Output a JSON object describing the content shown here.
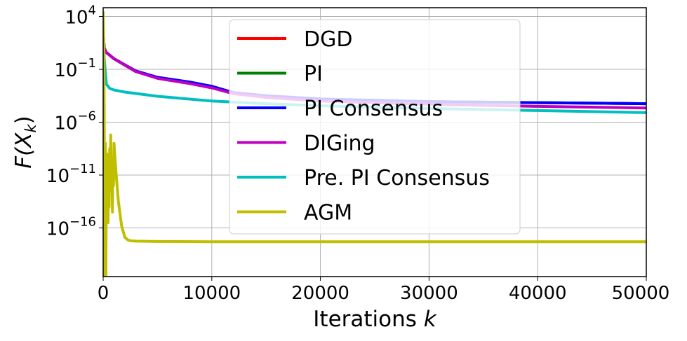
{
  "chart_data": {
    "type": "line",
    "title": "",
    "xlabel": "Iterations k",
    "xlabel_parts": {
      "text": "Iterations ",
      "var": "k"
    },
    "ylabel": "F(X_k)",
    "ylabel_parts": {
      "F": "F(",
      "X": "X",
      "k": "k",
      "close": ")"
    },
    "yscale": "log",
    "xlim": [
      0,
      50000
    ],
    "ylim_log10": [
      -20.6,
      4.83
    ],
    "grid": true,
    "legend_placement": "upper-center",
    "xticks": [
      {
        "value": 0,
        "label": "0"
      },
      {
        "value": 10000,
        "label": "10000"
      },
      {
        "value": 20000,
        "label": "20000"
      },
      {
        "value": 30000,
        "label": "30000"
      },
      {
        "value": 40000,
        "label": "40000"
      },
      {
        "value": 50000,
        "label": "50000"
      }
    ],
    "yticks": [
      {
        "log10": 4,
        "base": "10",
        "exp": "4"
      },
      {
        "log10": -1,
        "base": "10",
        "exp": "−1"
      },
      {
        "log10": -6,
        "base": "10",
        "exp": "−6"
      },
      {
        "log10": -11,
        "base": "10",
        "exp": "−11"
      },
      {
        "log10": -16,
        "base": "10",
        "exp": "−16"
      }
    ],
    "series": [
      {
        "name": "DGD",
        "color": "#ff0000",
        "x": [
          0,
          100,
          300,
          1000,
          3000,
          5000,
          8000,
          10000,
          12000,
          15000,
          20000,
          30000,
          40000,
          50000
        ],
        "log10_y": [
          2.5,
          1.0,
          0.6,
          0.0,
          -1.2,
          -1.8,
          -2.3,
          -2.65,
          -3.25,
          -3.55,
          -3.85,
          -4.05,
          -4.15,
          -4.25
        ]
      },
      {
        "name": "PI",
        "color": "#008000",
        "x": [
          0,
          100,
          300,
          1000,
          3000,
          5000,
          8000,
          10000,
          12000,
          15000,
          20000,
          30000,
          40000,
          50000
        ],
        "log10_y": [
          2.5,
          1.0,
          0.6,
          0.0,
          -1.2,
          -1.8,
          -2.3,
          -2.65,
          -3.25,
          -3.55,
          -3.85,
          -4.05,
          -4.15,
          -4.25
        ]
      },
      {
        "name": "PI Consensus",
        "color": "#0000ff",
        "x": [
          0,
          100,
          300,
          1000,
          3000,
          5000,
          8000,
          10000,
          12000,
          15000,
          20000,
          30000,
          40000,
          50000
        ],
        "log10_y": [
          2.5,
          1.0,
          0.6,
          0.0,
          -1.15,
          -1.75,
          -2.2,
          -2.6,
          -3.2,
          -3.5,
          -3.8,
          -4.05,
          -4.15,
          -4.25
        ]
      },
      {
        "name": "DIGing",
        "color": "#bf00bf",
        "x": [
          0,
          100,
          300,
          1000,
          3000,
          5000,
          8000,
          10000,
          12000,
          15000,
          20000,
          30000,
          40000,
          50000
        ],
        "log10_y": [
          2.5,
          1.0,
          0.6,
          0.0,
          -1.2,
          -1.85,
          -2.35,
          -2.75,
          -3.3,
          -3.65,
          -4.0,
          -4.3,
          -4.5,
          -4.65
        ]
      },
      {
        "name": "Pre. PI Consensus",
        "color": "#00bfbf",
        "x": [
          0,
          100,
          300,
          600,
          1000,
          2000,
          5000,
          10000,
          15000,
          20000,
          30000,
          40000,
          50000
        ],
        "log10_y": [
          3.0,
          0.0,
          -2.4,
          -2.8,
          -2.95,
          -3.15,
          -3.55,
          -4.0,
          -4.25,
          -4.45,
          -4.7,
          -4.9,
          -5.1
        ]
      },
      {
        "name": "AGM",
        "color": "#bfbf00",
        "x": [
          0,
          50,
          100,
          150,
          200,
          250,
          300,
          350,
          400,
          450,
          500,
          550,
          600,
          650,
          700,
          750,
          800,
          850,
          900,
          950,
          1000,
          1100,
          1200,
          1400,
          1700,
          2000,
          2300,
          2600,
          3000,
          5000,
          10000,
          20000,
          30000,
          40000,
          50000
        ],
        "log10_y": [
          4.5,
          2.0,
          -5.0,
          -20.6,
          -8.0,
          -20.6,
          -9.0,
          -15.0,
          -9.5,
          -15.5,
          -9.0,
          -14.0,
          -8.5,
          -12.5,
          -7.2,
          -12.0,
          -10.0,
          -14.5,
          -9.5,
          -12.0,
          -8.0,
          -9.5,
          -11.0,
          -13.5,
          -15.8,
          -16.9,
          -17.15,
          -17.22,
          -17.25,
          -17.28,
          -17.3,
          -17.3,
          -17.3,
          -17.3,
          -17.3
        ]
      }
    ]
  }
}
